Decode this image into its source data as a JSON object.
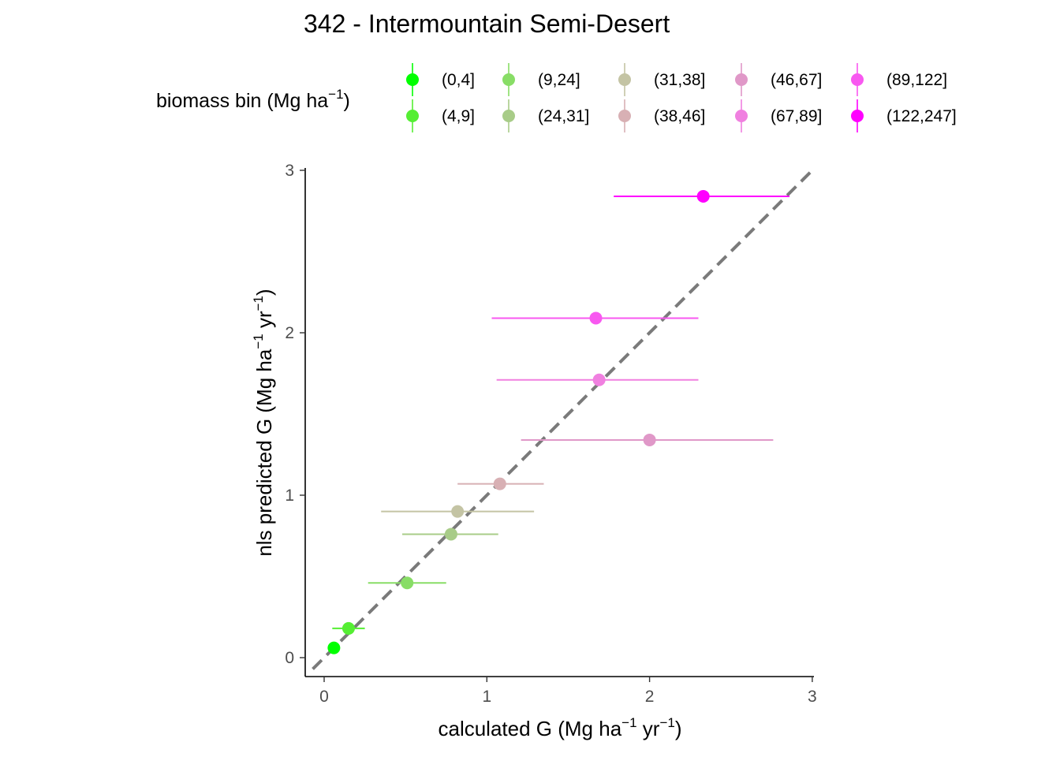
{
  "chart_data": {
    "type": "scatter",
    "title": "342 - Intermountain Semi-Desert",
    "xlabel": {
      "prefix": "calculated G (Mg ha",
      "sup1": "−1",
      "mid": " yr",
      "sup2": "−1",
      "suffix": ")"
    },
    "ylabel": {
      "prefix": "nls predicted G (Mg ha",
      "sup1": "−1",
      "mid": " yr",
      "sup2": "−1",
      "suffix": ")"
    },
    "xlim": [
      -0.12,
      3.0
    ],
    "ylim": [
      -0.12,
      3.0
    ],
    "x_ticks": [
      "0",
      "1",
      "2",
      "3"
    ],
    "y_ticks": [
      "0",
      "1",
      "2",
      "3"
    ],
    "reference_line": "y = x (dashed)",
    "legend": {
      "title_prefix": "biomass bin (Mg ha",
      "title_sup": "−1",
      "title_suffix": ")",
      "position": "top"
    },
    "series": [
      {
        "name": "(0,4]",
        "color": "#00ff00",
        "x": 0.06,
        "y": 0.06,
        "xmin": null,
        "xmax": null
      },
      {
        "name": "(4,9]",
        "color": "#55ee33",
        "x": 0.15,
        "y": 0.18,
        "xmin": 0.05,
        "xmax": 0.25
      },
      {
        "name": "(9,24]",
        "color": "#88dd66",
        "x": 0.51,
        "y": 0.46,
        "xmin": 0.27,
        "xmax": 0.75
      },
      {
        "name": "(24,31]",
        "color": "#a8cc88",
        "x": 0.78,
        "y": 0.76,
        "xmin": 0.48,
        "xmax": 1.07
      },
      {
        "name": "(31,38]",
        "color": "#c4c4a4",
        "x": 0.82,
        "y": 0.9,
        "xmin": 0.35,
        "xmax": 1.29
      },
      {
        "name": "(38,46]",
        "color": "#d8b0b4",
        "x": 1.08,
        "y": 1.07,
        "xmin": 0.82,
        "xmax": 1.35
      },
      {
        "name": "(46,67]",
        "color": "#e098c8",
        "x": 2.0,
        "y": 1.34,
        "xmin": 1.21,
        "xmax": 2.76
      },
      {
        "name": "(67,89]",
        "color": "#f080e0",
        "x": 1.69,
        "y": 1.71,
        "xmin": 1.06,
        "xmax": 2.3
      },
      {
        "name": "(89,122]",
        "color": "#f858f0",
        "x": 1.67,
        "y": 2.09,
        "xmin": 1.03,
        "xmax": 2.3
      },
      {
        "name": "(122,247]",
        "color": "#ff00ff",
        "x": 2.33,
        "y": 2.84,
        "xmin": 1.78,
        "xmax": 2.86
      }
    ]
  }
}
